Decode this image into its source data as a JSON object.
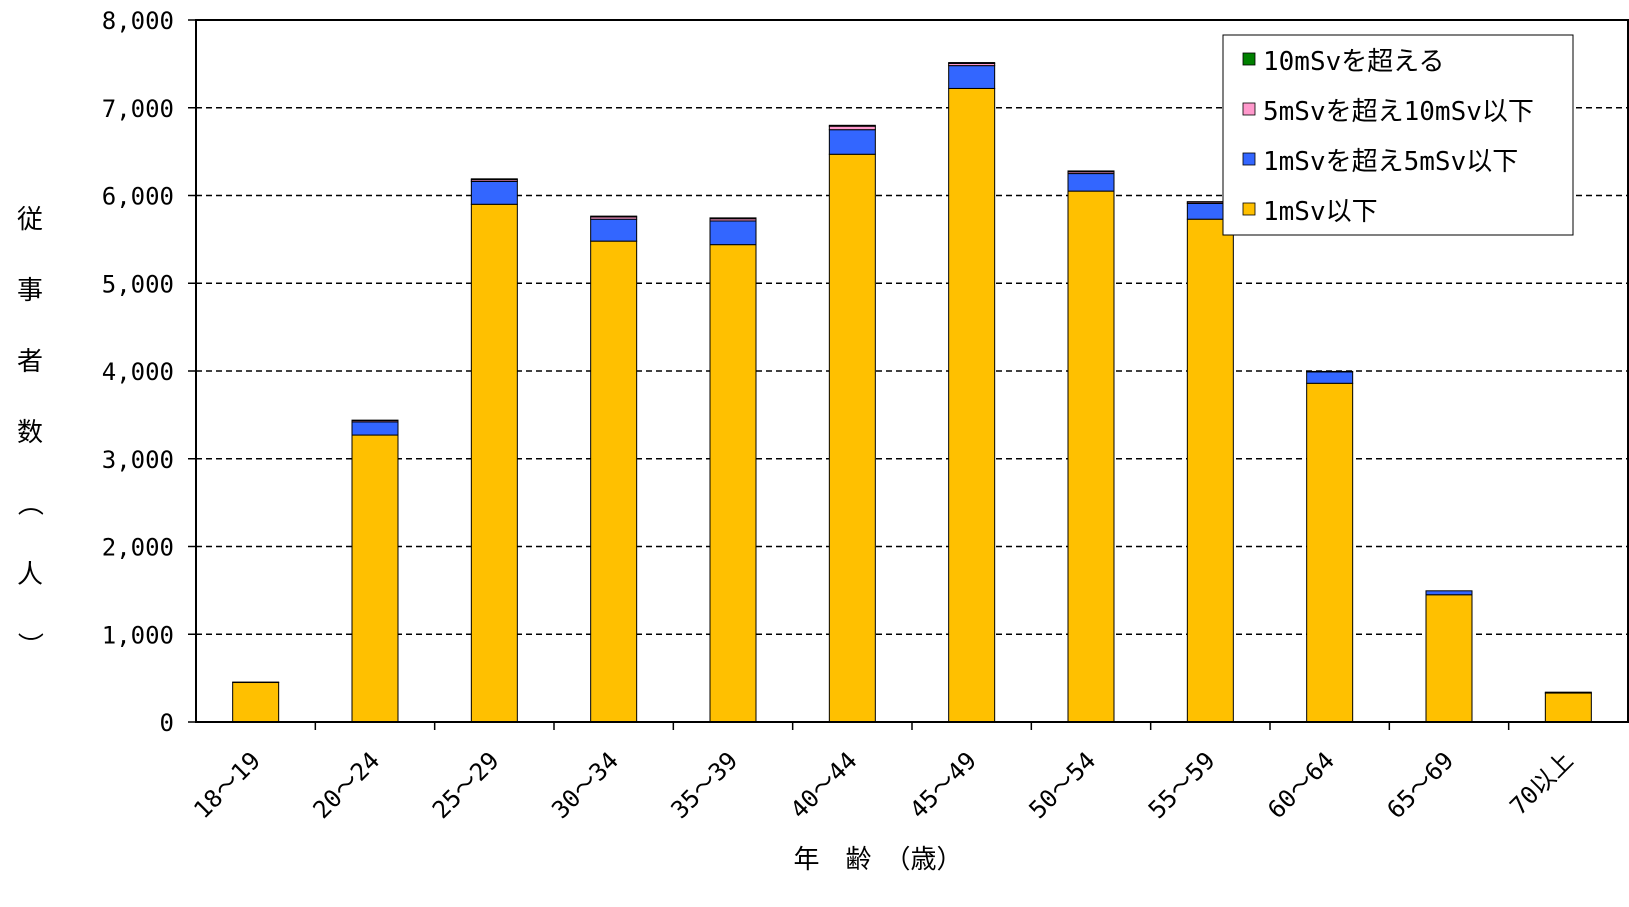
{
  "chart_data": {
    "type": "bar",
    "stacked": true,
    "title": "",
    "xlabel": "年　齢　（歳）",
    "ylabel": "従事者数（人）",
    "ylim": [
      0,
      8000
    ],
    "yticks": [
      0,
      1000,
      2000,
      3000,
      4000,
      5000,
      6000,
      7000,
      8000
    ],
    "ytick_labels": [
      "0",
      "1,000",
      "2,000",
      "3,000",
      "4,000",
      "5,000",
      "6,000",
      "7,000",
      "8,000"
    ],
    "grid": "horizontal dashed",
    "legend_position": "top-right",
    "categories": [
      "18～19",
      "20～24",
      "25～29",
      "30～34",
      "35～39",
      "40～44",
      "45～49",
      "50～54",
      "55～59",
      "60～64",
      "65～69",
      "70以上"
    ],
    "series": [
      {
        "name": "1mSv以下",
        "color": "#FFC000",
        "values": [
          450,
          3270,
          5900,
          5480,
          5440,
          6470,
          7220,
          6050,
          5730,
          3860,
          1450,
          330
        ]
      },
      {
        "name": "1mSvを超え5mSv以下",
        "color": "#3366FF",
        "values": [
          5,
          150,
          260,
          250,
          270,
          280,
          260,
          200,
          180,
          130,
          45,
          10
        ]
      },
      {
        "name": "5mSvを超え10mSv以下",
        "color": "#FF99CC",
        "values": [
          0,
          15,
          20,
          25,
          25,
          40,
          25,
          20,
          15,
          5,
          0,
          0
        ]
      },
      {
        "name": "10mSvを超える",
        "color": "#008000",
        "values": [
          0,
          5,
          10,
          10,
          10,
          10,
          10,
          10,
          5,
          0,
          0,
          0
        ]
      }
    ],
    "legend_order": [
      3,
      2,
      1,
      0
    ]
  }
}
